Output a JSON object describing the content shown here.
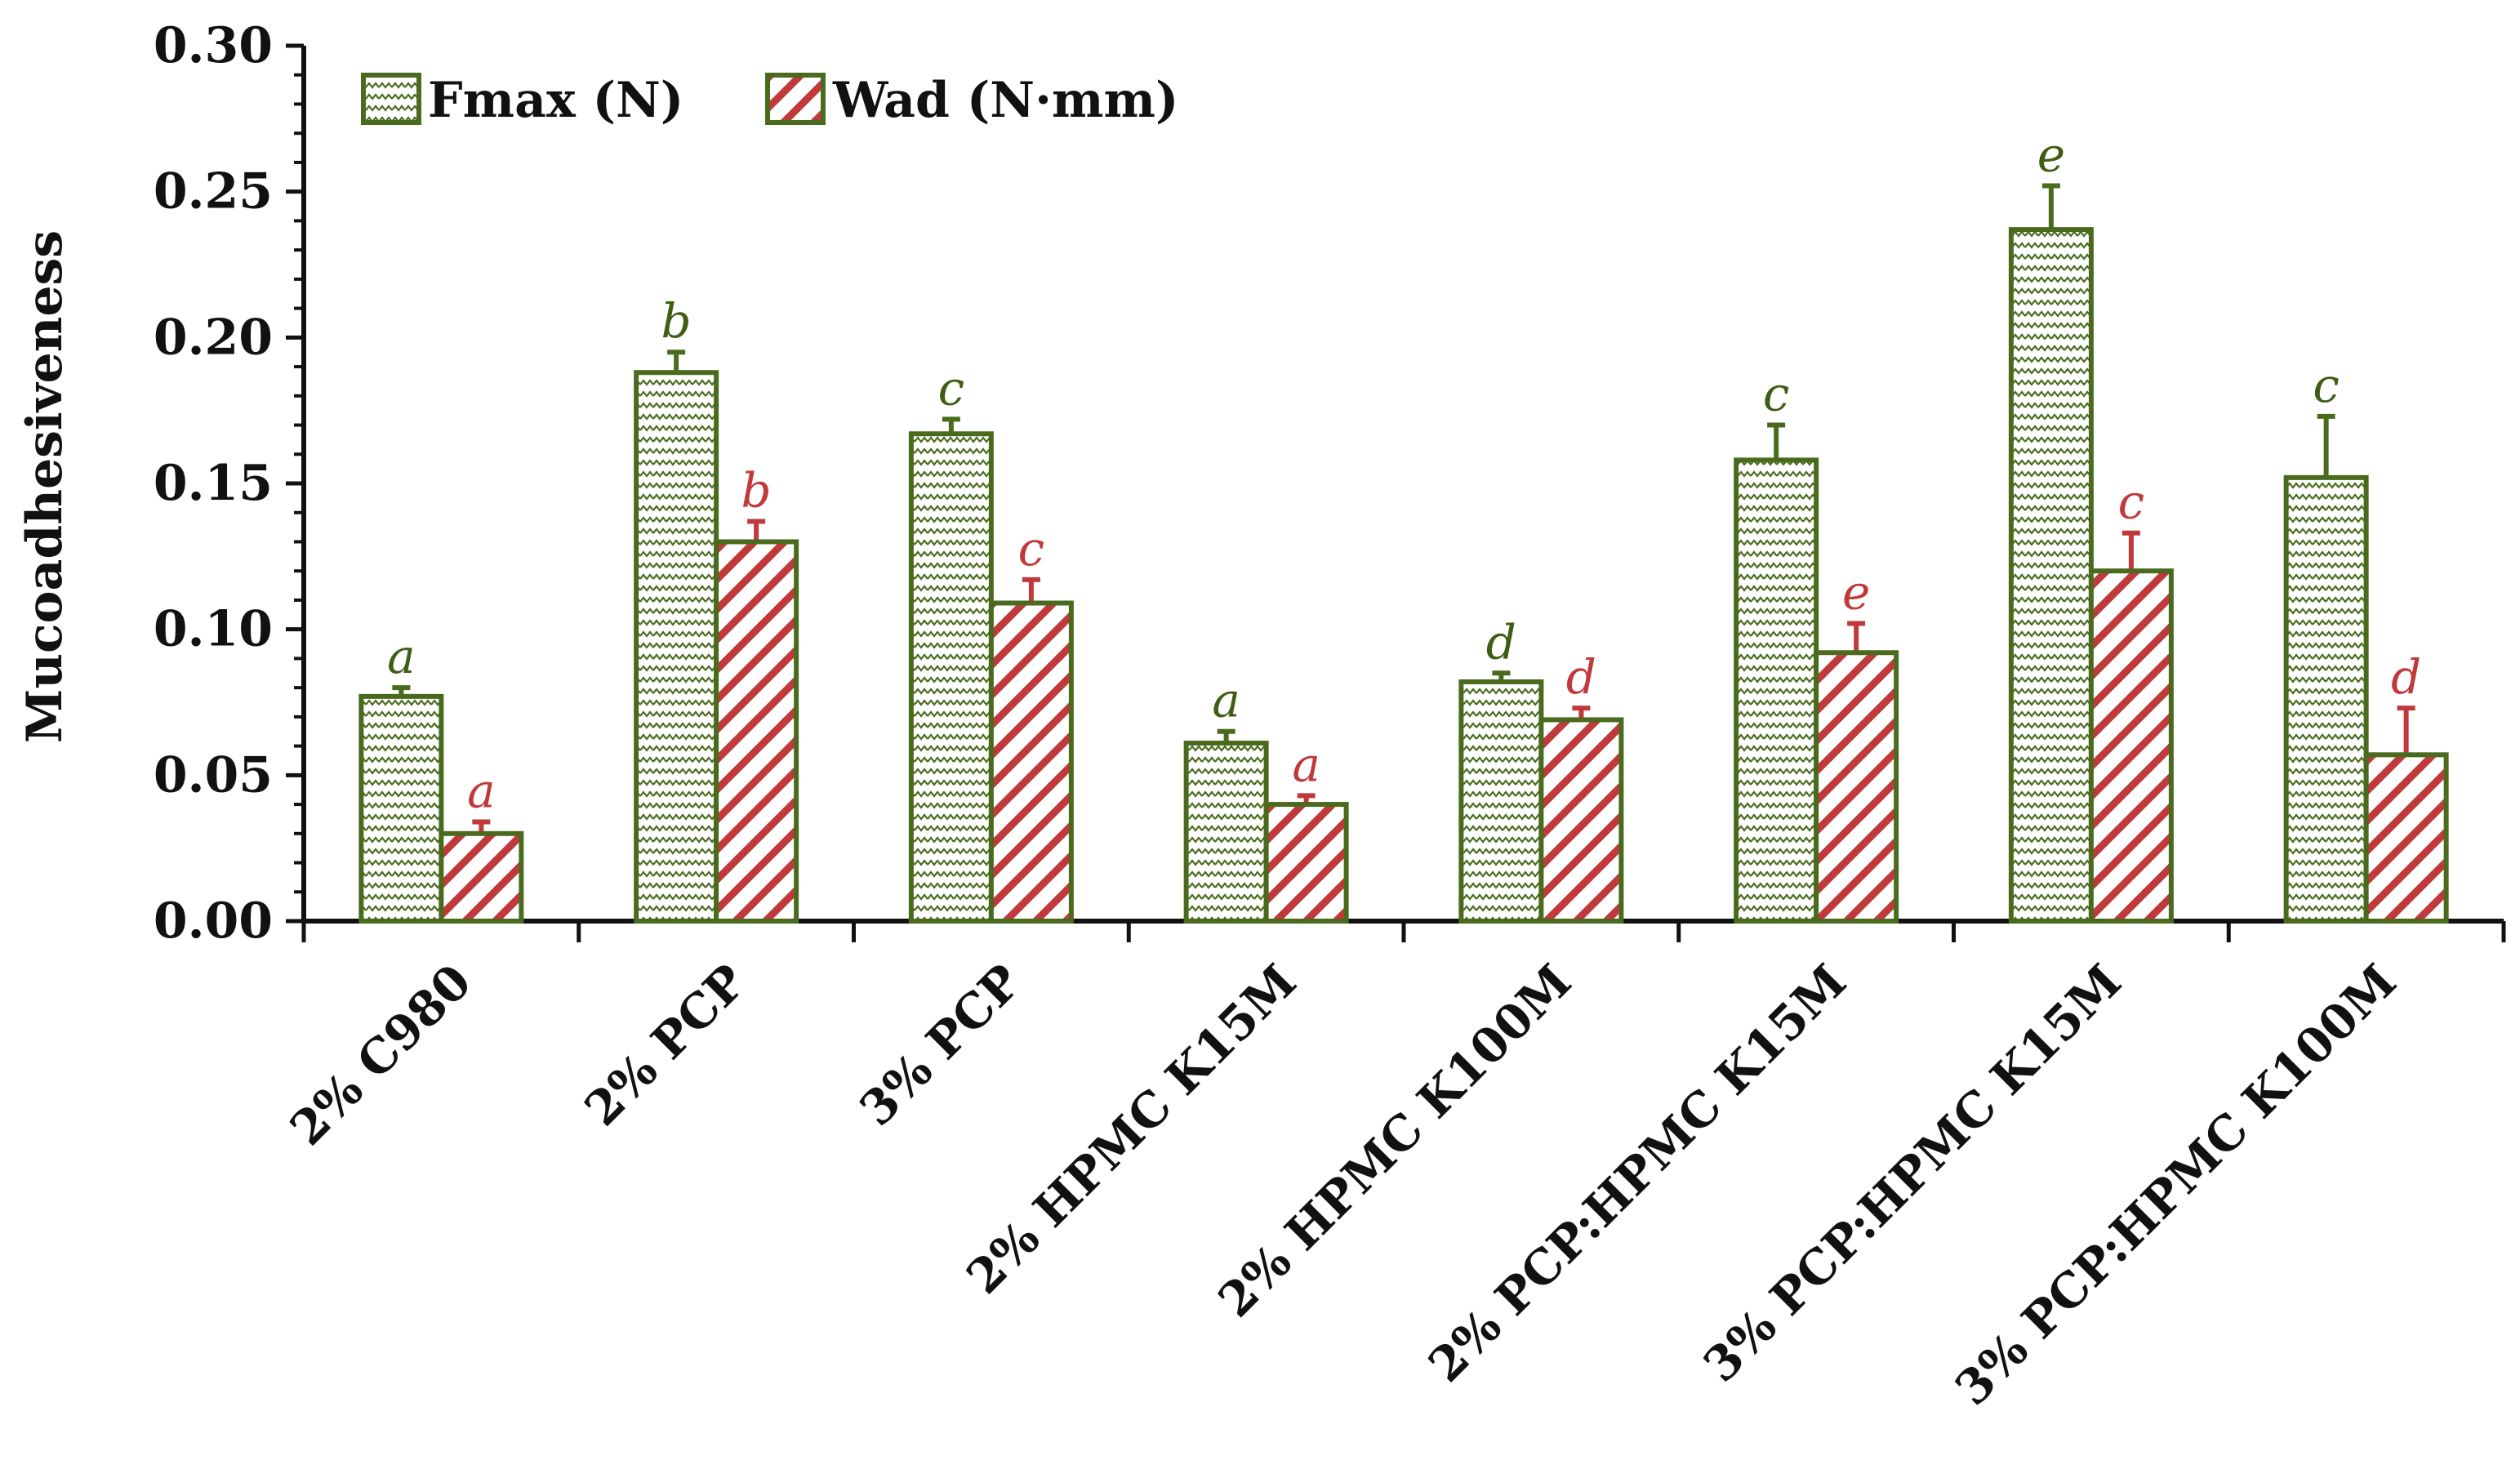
{
  "chart_data": {
    "type": "bar",
    "title": "",
    "xlabel": "",
    "ylabel": "Mucoadhesiveness",
    "ylim": [
      0,
      0.3
    ],
    "yticks": [
      "0.00",
      "0.05",
      "0.10",
      "0.15",
      "0.20",
      "0.25",
      "0.30"
    ],
    "grid": false,
    "legend_position": "top-left",
    "categories": [
      "2% C980",
      "2% PCP",
      "3% PCP",
      "2% HPMC K15M",
      "2% HPMC K100M",
      "2% PCP:HPMC K15M",
      "3% PCP:HPMC K15M",
      "3% PCP:HPMC K100M"
    ],
    "series": [
      {
        "name": "Fmax (N)",
        "color": "#4a6b1e",
        "pattern": "zigzag",
        "values": [
          0.077,
          0.188,
          0.167,
          0.061,
          0.082,
          0.158,
          0.237,
          0.152
        ],
        "errors": [
          0.003,
          0.007,
          0.005,
          0.004,
          0.003,
          0.012,
          0.015,
          0.021
        ],
        "letters": [
          "a",
          "b",
          "c",
          "a",
          "d",
          "c",
          "e",
          "c"
        ]
      },
      {
        "name": "Wad (N·mm)",
        "color": "#c0393b",
        "pattern": "diagonal-stripes",
        "values": [
          0.03,
          0.13,
          0.109,
          0.04,
          0.069,
          0.092,
          0.12,
          0.057
        ],
        "errors": [
          0.004,
          0.007,
          0.008,
          0.003,
          0.004,
          0.01,
          0.013,
          0.016
        ],
        "letters": [
          "a",
          "b",
          "c",
          "a",
          "d",
          "e",
          "c",
          "d"
        ]
      }
    ]
  }
}
